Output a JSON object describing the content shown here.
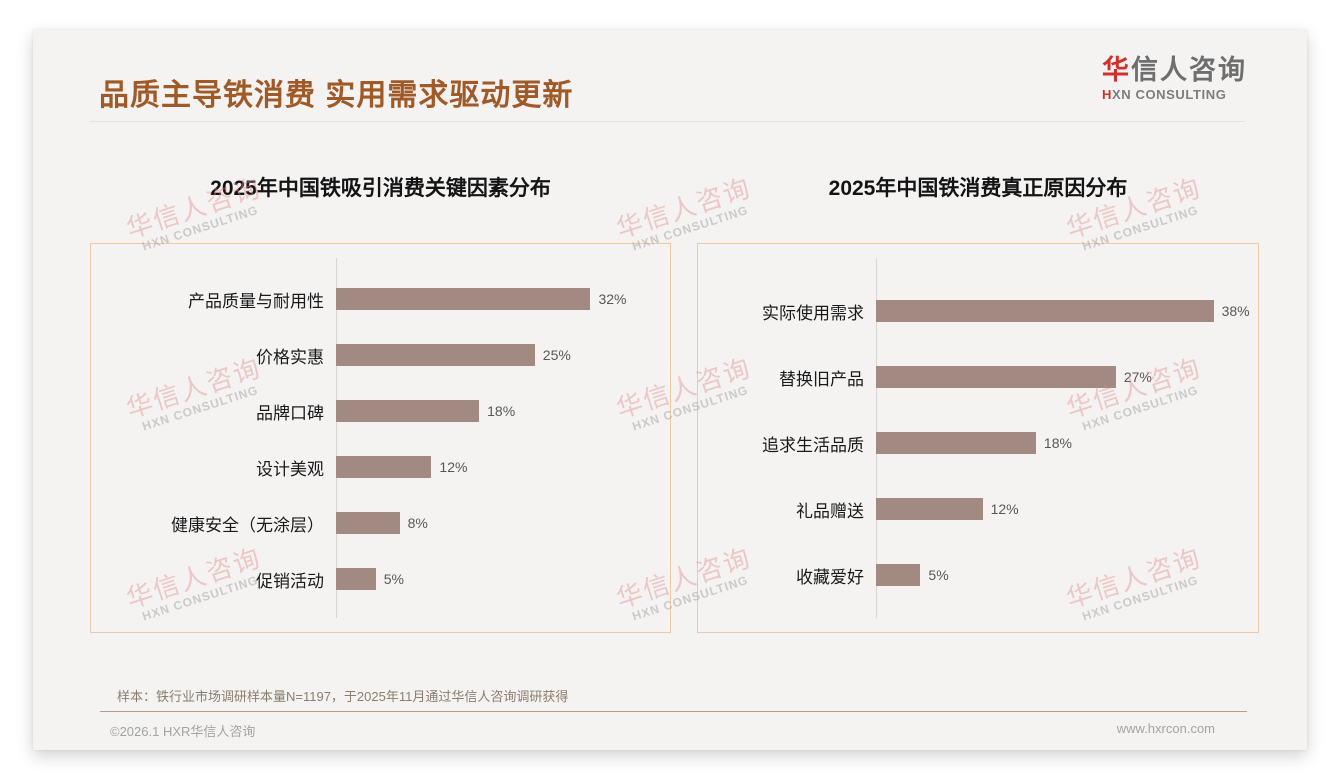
{
  "header": {
    "title": "品质主导铁消费 实用需求驱动更新",
    "logo": {
      "cn_accent": "华",
      "cn_rest": "信人咨询",
      "en_accent": "H",
      "en_rest": "XN CONSULTING"
    }
  },
  "chart_data": [
    {
      "type": "bar",
      "orientation": "horizontal",
      "title": "2025年中国铁吸引消费关键因素分布",
      "categories": [
        "产品质量与耐用性",
        "价格实惠",
        "品牌口碑",
        "设计美观",
        "健康安全（无涂层）",
        "促销活动"
      ],
      "values": [
        32,
        25,
        18,
        12,
        8,
        5
      ],
      "value_labels": [
        "32%",
        "25%",
        "18%",
        "12%",
        "8%",
        "5%"
      ],
      "unit": "%",
      "xlim": [
        0,
        42
      ],
      "grid": false,
      "bar_color": "#a28a82"
    },
    {
      "type": "bar",
      "orientation": "horizontal",
      "title": "2025年中国铁消费真正原因分布",
      "categories": [
        "实际使用需求",
        "替换旧产品",
        "追求生活品质",
        "礼品赠送",
        "收藏爱好"
      ],
      "values": [
        38,
        27,
        18,
        12,
        5
      ],
      "value_labels": [
        "38%",
        "27%",
        "18%",
        "12%",
        "5%"
      ],
      "unit": "%",
      "xlim": [
        0,
        43
      ],
      "grid": false,
      "bar_color": "#a28a82"
    }
  ],
  "watermark": {
    "cn": "华信人咨询",
    "en": "HXN CONSULTING"
  },
  "footnote": "样本：铁行业市场调研样本量N=1197，于2025年11月通过华信人咨询调研获得",
  "footer": {
    "left": "©2026.1 HXR华信人咨询",
    "right": "www.hxrcon.com"
  },
  "colors": {
    "accent_title": "#a05a28",
    "bar": "#a28a82",
    "panel_border": "#eec9a3",
    "logo_red": "#d0302a",
    "footer_line": "#b59c8b"
  }
}
